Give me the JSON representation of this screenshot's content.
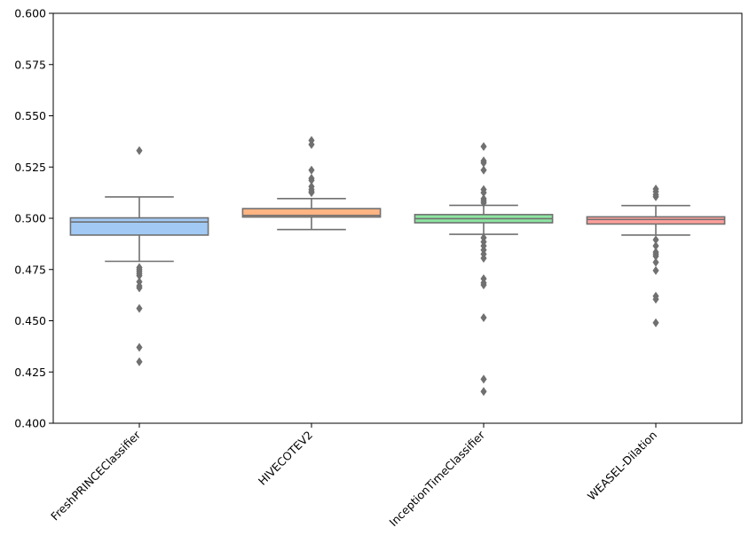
{
  "chart_data": {
    "type": "box",
    "title": "",
    "xlabel": "",
    "ylabel": "",
    "ylim": [
      0.4,
      0.6
    ],
    "yticks": [
      "0.400",
      "0.425",
      "0.450",
      "0.475",
      "0.500",
      "0.525",
      "0.550",
      "0.575",
      "0.600"
    ],
    "grid": false,
    "categories": [
      "FreshPRINCEClassifier",
      "HIVECOTEV2",
      "InceptionTimeClassifier",
      "WEASEL-Dilation"
    ],
    "colors": [
      "#a1c9f4",
      "#ffb482",
      "#8de5a1",
      "#ff9f9b"
    ],
    "edge_color": "#707070",
    "boxes": [
      {
        "whisker_low": 0.479,
        "q1": 0.4918,
        "median": 0.4982,
        "q3": 0.5002,
        "whisker_high": 0.5104,
        "outliers": [
          0.533,
          0.476,
          0.475,
          0.474,
          0.473,
          0.472,
          0.469,
          0.467,
          0.466,
          0.456,
          0.437,
          0.43
        ]
      },
      {
        "whisker_low": 0.4945,
        "q1": 0.5006,
        "median": 0.5014,
        "q3": 0.5047,
        "whisker_high": 0.5096,
        "outliers": [
          0.538,
          0.536,
          0.5235,
          0.5195,
          0.5185,
          0.5155,
          0.514,
          0.513,
          0.5125
        ]
      },
      {
        "whisker_low": 0.4922,
        "q1": 0.4978,
        "median": 0.4998,
        "q3": 0.5018,
        "whisker_high": 0.5063,
        "outliers": [
          0.535,
          0.528,
          0.527,
          0.5235,
          0.514,
          0.5125,
          0.5095,
          0.5085,
          0.5075,
          0.4905,
          0.4885,
          0.4865,
          0.4845,
          0.4825,
          0.4805,
          0.4705,
          0.4685,
          0.4675,
          0.4515,
          0.4215,
          0.4155
        ]
      },
      {
        "whisker_low": 0.4918,
        "q1": 0.4972,
        "median": 0.4994,
        "q3": 0.5007,
        "whisker_high": 0.5062,
        "outliers": [
          0.5143,
          0.513,
          0.5115,
          0.5105,
          0.4895,
          0.4865,
          0.4835,
          0.4825,
          0.4815,
          0.4785,
          0.4745,
          0.462,
          0.4605,
          0.449
        ]
      }
    ]
  }
}
